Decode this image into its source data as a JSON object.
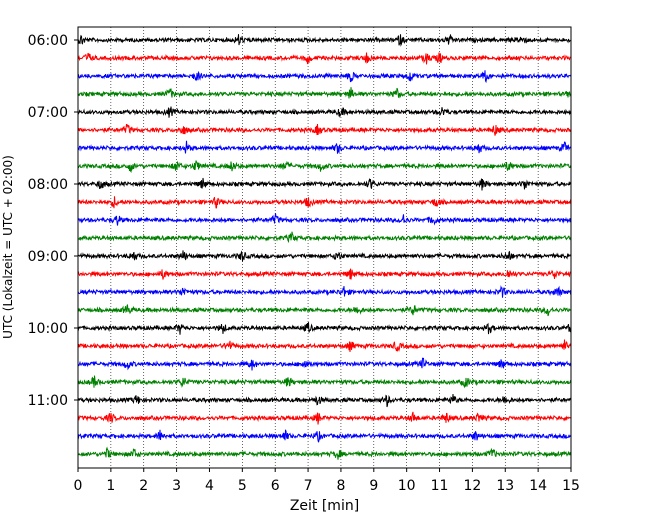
{
  "chart_data": {
    "type": "line",
    "title": "",
    "xlabel": "Zeit  [min]",
    "ylabel": "UTC (Lokalzeit = UTC + 02:00)",
    "xlim": [
      0,
      15
    ],
    "x_ticks": [
      "0",
      "1",
      "2",
      "3",
      "4",
      "5",
      "6",
      "7",
      "8",
      "9",
      "10",
      "11",
      "12",
      "13",
      "14",
      "15"
    ],
    "y_tick_labels": [
      "06:00",
      "07:00",
      "08:00",
      "09:00",
      "10:00",
      "11:00"
    ],
    "grid": "vertical dotted lines at each minute",
    "trace_colors": [
      "#000000",
      "#ff0000",
      "#0000ff",
      "#008000"
    ],
    "traces_per_hour": 4,
    "trace_count": 24,
    "start_time": "06:00",
    "trace_interval_minutes": 15,
    "trace_events": [
      [
        0.1,
        4.9,
        9.8,
        11.3,
        13.5
      ],
      [
        0.3,
        7.0,
        8.8,
        10.6,
        11.0
      ],
      [
        3.6,
        8.3,
        10.1,
        12.4
      ],
      [
        2.8,
        8.3,
        9.7,
        15.0
      ],
      [
        2.8,
        8.0,
        11.1
      ],
      [
        1.5,
        3.2,
        7.3,
        12.7
      ],
      [
        3.3,
        7.9,
        12.2,
        14.8
      ],
      [
        1.6,
        3.0,
        3.6,
        4.7,
        6.3,
        7.4,
        13.1
      ],
      [
        0.7,
        3.8,
        8.9,
        12.3,
        13.6
      ],
      [
        1.1,
        4.2,
        7.0,
        10.9
      ],
      [
        1.2,
        6.0,
        9.9,
        10.8
      ],
      [
        6.5
      ],
      [
        1.7,
        3.2,
        5.0,
        7.9,
        13.1
      ],
      [
        2.6,
        8.3,
        13.1,
        14.5
      ],
      [
        3.2,
        8.1,
        12.9,
        14.6
      ],
      [
        1.5,
        8.5,
        10.2,
        14.3
      ],
      [
        3.1,
        4.4,
        7.0,
        12.5,
        15.0
      ],
      [
        4.6,
        8.3,
        9.7,
        14.8
      ],
      [
        1.5,
        5.3,
        6.9,
        10.5,
        12.9
      ],
      [
        0.5,
        3.2,
        6.4,
        11.8
      ],
      [
        1.8,
        7.3,
        9.4,
        11.4,
        13.0
      ],
      [
        1.0,
        7.3,
        10.2,
        11.2,
        12.2
      ],
      [
        2.5,
        6.3,
        7.3,
        12.1
      ],
      [
        0.9,
        1.7,
        7.9,
        12.6
      ]
    ]
  }
}
